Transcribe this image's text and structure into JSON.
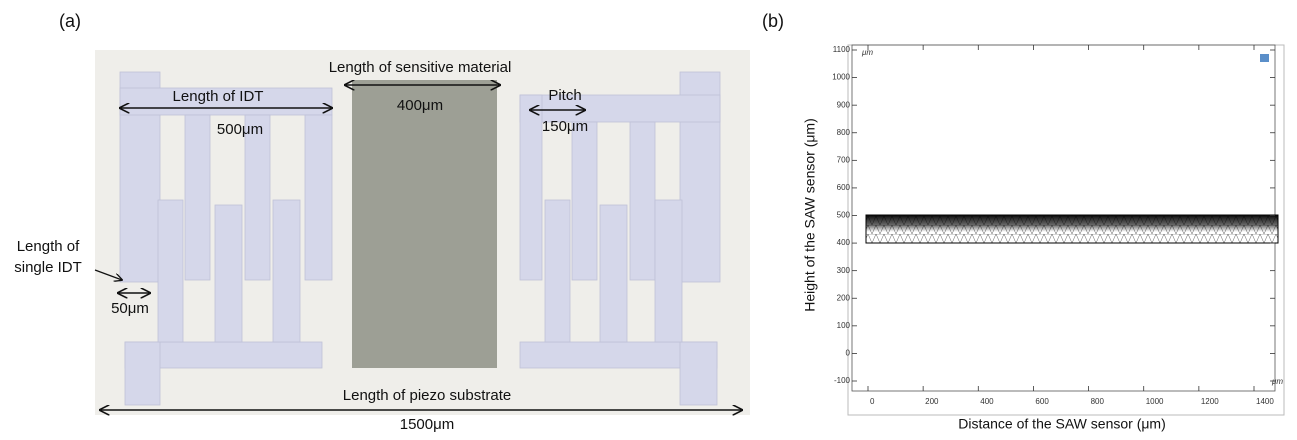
{
  "panel_a": {
    "label": "(a)",
    "sensitive_length_label": "Length of sensitive material",
    "sensitive_length_value": "400μm",
    "idt_length_label": "Length of IDT",
    "idt_length_value": "500μm",
    "pitch_label": "Pitch",
    "pitch_value": "150μm",
    "single_idt_label": [
      "Length of",
      "single IDT"
    ],
    "single_idt_value": "50μm",
    "substrate_length_label": "Length of piezo substrate",
    "substrate_length_value": "1500μm"
  },
  "panel_b": {
    "label": "(b)",
    "x_label": "Distance  of the SAW sensor (μm)",
    "y_label": "Height of the SAW sensor  (μm)",
    "unit": "μm",
    "xticks": [
      0,
      200,
      400,
      600,
      800,
      1000,
      1200,
      1400
    ],
    "yticks": [
      -100,
      0,
      100,
      200,
      300,
      400,
      500,
      600,
      700,
      800,
      900,
      1000,
      1100
    ]
  }
}
